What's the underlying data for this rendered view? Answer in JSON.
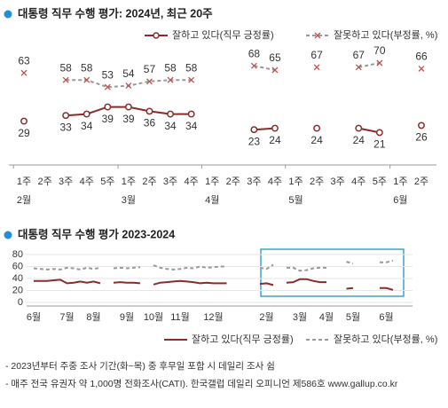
{
  "chart_data": [
    {
      "type": "line",
      "title": "대통령 직무 수행 평가: 2024년, 최근 20주",
      "categories": [
        "1주",
        "2주",
        "3주",
        "4주",
        "5주",
        "1주",
        "2주",
        "3주",
        "4주",
        "1주",
        "2주",
        "3주",
        "4주",
        "1주",
        "2주",
        "3주",
        "4주",
        "5주",
        "1주",
        "2주"
      ],
      "months": [
        {
          "index": 0,
          "label": "2월"
        },
        {
          "index": 5,
          "label": "3월"
        },
        {
          "index": 9,
          "label": "4월"
        },
        {
          "index": 13,
          "label": "5월"
        },
        {
          "index": 18,
          "label": "6월"
        }
      ],
      "ylim": [
        0,
        80
      ],
      "series": [
        {
          "name": "잘하고 있다(직무 긍정률)",
          "color": "#8b2b2b",
          "marker": "circle",
          "label_side": "below",
          "values": [
            29,
            null,
            33,
            34,
            39,
            39,
            36,
            34,
            34,
            null,
            null,
            23,
            24,
            null,
            24,
            null,
            24,
            21,
            null,
            26
          ]
        },
        {
          "name": "잘못하고 있다(부정률, %)",
          "color": "#999999",
          "marker_color": "#c0504d",
          "marker": "x",
          "dashed": true,
          "label_side": "above",
          "values": [
            63,
            null,
            58,
            58,
            53,
            54,
            57,
            58,
            58,
            null,
            null,
            68,
            65,
            null,
            67,
            null,
            67,
            70,
            null,
            66
          ]
        }
      ]
    },
    {
      "type": "line",
      "title": "대통령 직무 수행 평가 2023-2024",
      "categories": [
        "6월",
        null,
        null,
        null,
        null,
        "7월",
        null,
        null,
        null,
        "8월",
        null,
        null,
        null,
        null,
        "9월",
        null,
        null,
        null,
        "10월",
        null,
        null,
        null,
        "11월",
        null,
        null,
        null,
        null,
        "12월",
        null,
        null,
        null,
        null,
        null,
        null,
        null,
        "2월",
        null,
        null,
        null,
        null,
        "3월",
        null,
        null,
        null,
        "4월",
        null,
        null,
        null,
        "5월",
        null,
        null,
        null,
        null,
        "6월",
        null,
        null,
        null
      ],
      "ylim": [
        0,
        80
      ],
      "yticks": [
        0,
        20,
        40,
        60,
        80
      ],
      "grid": true,
      "series": [
        {
          "name": "잘하고 있다(직무 긍정률)",
          "color": "#8b2b2b",
          "values": [
            36,
            36,
            36,
            37,
            38,
            32,
            33,
            35,
            33,
            35,
            32,
            null,
            33,
            34,
            33,
            33,
            32,
            null,
            30,
            33,
            34,
            35,
            36,
            35,
            34,
            32,
            33,
            32,
            32,
            32,
            null,
            null,
            null,
            null,
            31,
            32,
            29,
            null,
            33,
            34,
            39,
            39,
            36,
            34,
            34,
            null,
            null,
            23,
            24,
            null,
            24,
            null,
            24,
            24,
            21,
            null,
            26
          ]
        },
        {
          "name": "잘못하고 있다(부정률, %)",
          "color": "#999999",
          "dashed": true,
          "values": [
            57,
            56,
            55,
            56,
            55,
            58,
            57,
            55,
            58,
            56,
            58,
            null,
            57,
            58,
            57,
            58,
            59,
            null,
            62,
            58,
            56,
            55,
            56,
            58,
            57,
            60,
            58,
            59,
            60,
            60,
            null,
            null,
            null,
            null,
            58,
            56,
            63,
            null,
            58,
            58,
            53,
            54,
            57,
            58,
            58,
            null,
            null,
            68,
            65,
            null,
            67,
            null,
            67,
            67,
            70,
            null,
            66
          ]
        }
      ]
    }
  ],
  "notes": [
    "- 2023년부터 주중 조사 기간(화~목) 중 후무일 포함 시 데일리 조사 쉼",
    "- 매주 전국 유권자 약 1,000명 전화조사(CATI). 한국갤럽 데일리 오피니언 제586호 www.gallup.co.kr"
  ]
}
